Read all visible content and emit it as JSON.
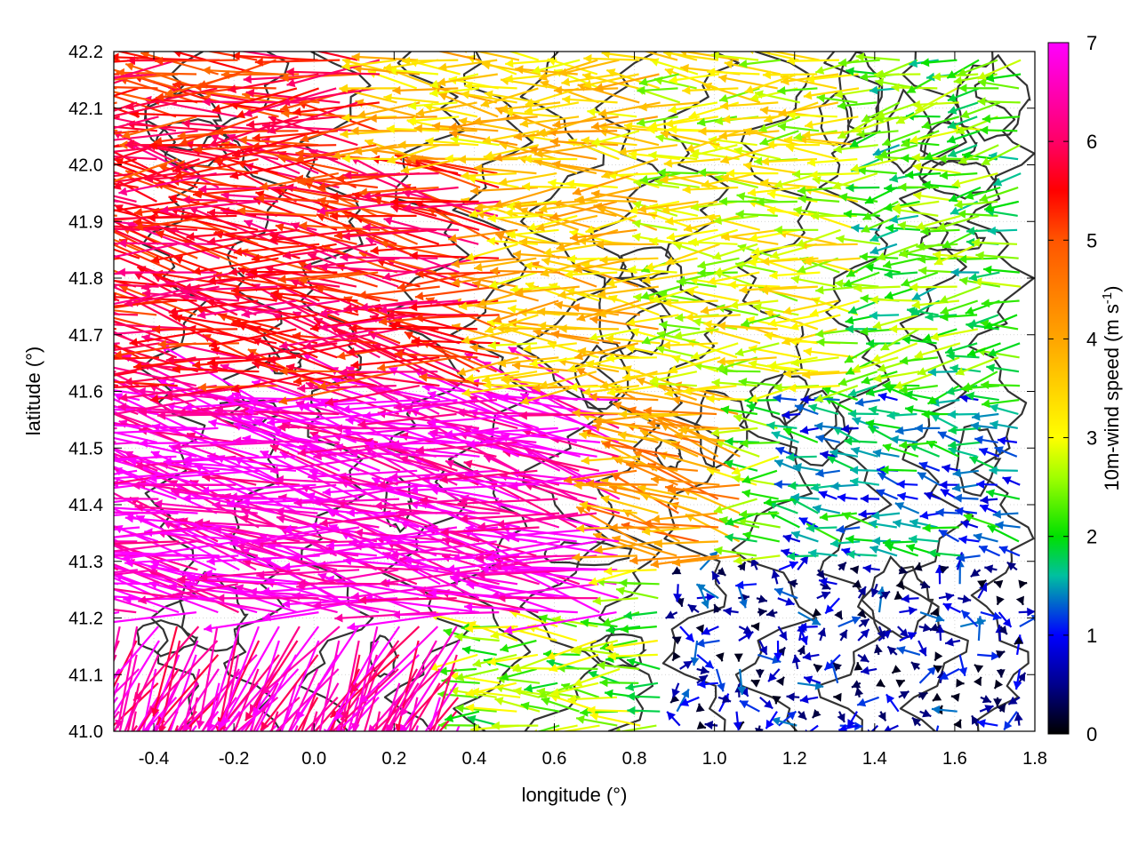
{
  "chart_data": {
    "type": "quiver",
    "title": "",
    "xlabel": "longitude (°)",
    "ylabel": "latitude (°)",
    "xlim": [
      -0.5,
      1.8
    ],
    "ylim": [
      41.0,
      42.2
    ],
    "x_ticks": [
      "-0.4",
      "-0.2",
      "0.0",
      "0.2",
      "0.4",
      "0.6",
      "0.8",
      "1.0",
      "1.2",
      "1.4",
      "1.6",
      "1.8"
    ],
    "x_tick_values": [
      -0.4,
      -0.2,
      0.0,
      0.2,
      0.4,
      0.6,
      0.8,
      1.0,
      1.2,
      1.4,
      1.6,
      1.8
    ],
    "y_ticks": [
      "41.0",
      "41.1",
      "41.2",
      "41.3",
      "41.4",
      "41.5",
      "41.6",
      "41.7",
      "41.8",
      "41.9",
      "42.0",
      "42.1",
      "42.2"
    ],
    "y_tick_values": [
      41.0,
      41.1,
      41.2,
      41.3,
      41.4,
      41.5,
      41.6,
      41.7,
      41.8,
      41.9,
      42.0,
      42.1,
      42.2
    ],
    "grid": true,
    "colorbar": {
      "label": "10m-wind speed (m s",
      "label_superscript": "-1",
      "label_suffix": ")",
      "range": [
        0,
        7
      ],
      "ticks": [
        "0",
        "1",
        "2",
        "3",
        "4",
        "5",
        "6",
        "7"
      ],
      "tick_values": [
        0,
        1,
        2,
        3,
        4,
        5,
        6,
        7
      ],
      "palette": [
        {
          "value": 0,
          "color": "#000000"
        },
        {
          "value": 0.5,
          "color": "#00008b"
        },
        {
          "value": 1,
          "color": "#0000ff"
        },
        {
          "value": 1.6,
          "color": "#00c0a0"
        },
        {
          "value": 2,
          "color": "#00e000"
        },
        {
          "value": 2.6,
          "color": "#a0ff00"
        },
        {
          "value": 3,
          "color": "#ffff00"
        },
        {
          "value": 4,
          "color": "#ffa500"
        },
        {
          "value": 5,
          "color": "#ff5500"
        },
        {
          "value": 5.5,
          "color": "#ff0000"
        },
        {
          "value": 6,
          "color": "#ff0066"
        },
        {
          "value": 7,
          "color": "#ff00ff"
        }
      ]
    },
    "wind_field": {
      "description": "Gridded 10 m wind vectors; speeds estimated per region from arrow colors",
      "lon_step": 0.05,
      "lat_step": 0.025,
      "regions": [
        {
          "lon_range": [
            -0.5,
            0.4
          ],
          "lat_range": [
            41.0,
            41.2
          ],
          "speed": 6.5,
          "direction_deg": 240
        },
        {
          "lon_range": [
            -0.5,
            0.8
          ],
          "lat_range": [
            41.2,
            41.6
          ],
          "speed": 6.8,
          "direction_deg": 170
        },
        {
          "lon_range": [
            -0.5,
            0.5
          ],
          "lat_range": [
            41.6,
            42.0
          ],
          "speed": 5.6,
          "direction_deg": 172
        },
        {
          "lon_range": [
            -0.5,
            0.2
          ],
          "lat_range": [
            42.0,
            42.2
          ],
          "speed": 5.4,
          "direction_deg": 180
        },
        {
          "lon_range": [
            0.2,
            0.9
          ],
          "lat_range": [
            41.6,
            42.2
          ],
          "speed": 3.6,
          "direction_deg": 178
        },
        {
          "lon_range": [
            0.5,
            1.1
          ],
          "lat_range": [
            41.3,
            41.6
          ],
          "speed": 4.2,
          "direction_deg": 168
        },
        {
          "lon_range": [
            0.9,
            1.4
          ],
          "lat_range": [
            41.6,
            42.2
          ],
          "speed": 3.0,
          "direction_deg": 180
        },
        {
          "lon_range": [
            1.4,
            1.8
          ],
          "lat_range": [
            41.6,
            42.2
          ],
          "speed": 2.2,
          "direction_deg": 190
        },
        {
          "lon_range": [
            1.2,
            1.8
          ],
          "lat_range": [
            41.3,
            41.6
          ],
          "speed": 1.5,
          "direction_deg": 170
        },
        {
          "lon_range": [
            0.9,
            1.8
          ],
          "lat_range": [
            41.0,
            41.3
          ],
          "speed": 0.7,
          "direction_deg": 0
        }
      ]
    },
    "contours": {
      "color": "#333333",
      "description": "Terrain elevation isolines (dark grey)"
    }
  }
}
